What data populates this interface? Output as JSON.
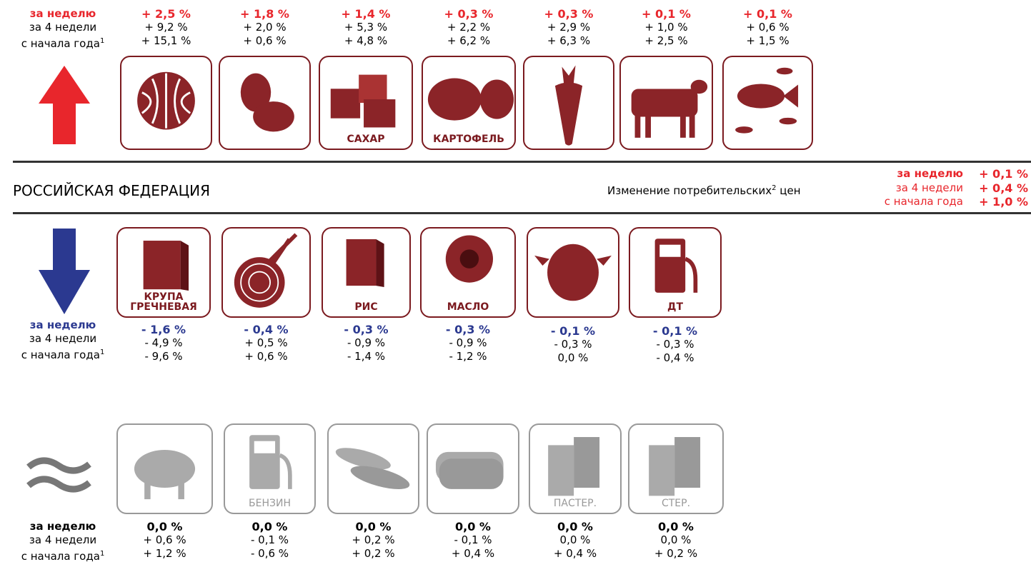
{
  "rising": {
    "labels": {
      "week": "за неделю",
      "four_weeks": "за 4 недели",
      "ytd": "с начала года",
      "ytd_note": "1"
    },
    "items": [
      {
        "week": "+ 2,5 %",
        "four_weeks": "+ 9,2 %",
        "ytd": "+ 15,1 %"
      },
      {
        "week": "+ 1,8 %",
        "four_weeks": "+ 2,0 %",
        "ytd": "+ 0,6 %"
      },
      {
        "label": "САХАР",
        "week": "+ 1,4 %",
        "four_weeks": "+ 5,3 %",
        "ytd": "+ 4,8 %"
      },
      {
        "label": "КАРТОФЕЛЬ",
        "week": "+ 0,3 %",
        "four_weeks": "+ 2,2 %",
        "ytd": "+ 6,2 %"
      },
      {
        "week": "+ 0,3 %",
        "four_weeks": "+ 2,9 %",
        "ytd": "+ 6,3 %"
      },
      {
        "week": "+ 0,1 %",
        "four_weeks": "+ 1,0 %",
        "ytd": "+ 2,5 %"
      },
      {
        "week": "+ 0,1 %",
        "four_weeks": "+ 0,6 %",
        "ytd": "+ 1,5 %"
      }
    ]
  },
  "header": {
    "region": "РОССИЙСКАЯ ФЕДЕРАЦИЯ",
    "caption": "Изменение потребительских",
    "caption_note": "2",
    "caption_end": "цен",
    "summary": [
      {
        "label": "за неделю",
        "value": "+ 0,1 %"
      },
      {
        "label": "за 4 недели",
        "value": "+ 0,4 %"
      },
      {
        "label": "с начала года",
        "value": "+ 1,0 %"
      }
    ]
  },
  "falling": {
    "labels": {
      "week": "за неделю",
      "four_weeks": "за 4 недели",
      "ytd": "с начала года",
      "ytd_note": "1"
    },
    "items": [
      {
        "label": "КРУПА ГРЕЧНЕВАЯ",
        "week": "- 1,6 %",
        "four_weeks": "- 4,9 %",
        "ytd": "- 9,6 %"
      },
      {
        "week": "- 0,4 %",
        "four_weeks": "+ 0,5 %",
        "ytd": "+ 0,6 %"
      },
      {
        "label": "РИС",
        "week": "- 0,3 %",
        "four_weeks": "- 0,9 %",
        "ytd": "- 1,4 %"
      },
      {
        "label": "МАСЛО",
        "week": "- 0,3 %",
        "four_weeks": "- 0,9 %",
        "ytd": "- 1,2 %"
      },
      {
        "week": "- 0,1 %",
        "four_weeks": "- 0,3 %",
        "ytd": "0,0 %"
      },
      {
        "label": "ДТ",
        "week": "- 0,1 %",
        "four_weeks": "- 0,3 %",
        "ytd": "- 0,4 %"
      }
    ]
  },
  "stable": {
    "labels": {
      "week": "за неделю",
      "four_weeks": "за 4 недели",
      "ytd": "с начала года",
      "ytd_note": "1"
    },
    "items": [
      {
        "week": "0,0 %",
        "four_weeks": "+ 0,6 %",
        "ytd": "+ 1,2 %"
      },
      {
        "label": "БЕНЗИН",
        "week": "0,0 %",
        "four_weeks": "- 0,1 %",
        "ytd": "- 0,6 %"
      },
      {
        "week": "0,0 %",
        "four_weeks": "+ 0,2 %",
        "ytd": "+ 0,2 %"
      },
      {
        "week": "0,0 %",
        "four_weeks": "- 0,1 %",
        "ytd": "+ 0,4 %"
      },
      {
        "label": "ПАСТЕР.",
        "week": "0,0 %",
        "four_weeks": "0,0 %",
        "ytd": "+ 0,4 %"
      },
      {
        "label": "СТЕР.",
        "week": "0,0 %",
        "four_weeks": "0,0 %",
        "ytd": "+ 0,2 %"
      }
    ]
  }
}
